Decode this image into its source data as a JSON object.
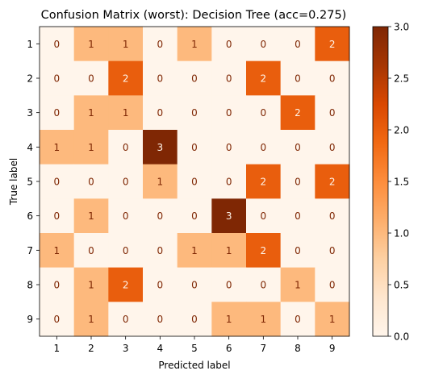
{
  "chart_data": {
    "type": "heatmap",
    "title": "Confusion Matrix (worst): Decision Tree (acc=0.275)",
    "xlabel": "Predicted label",
    "ylabel": "True label",
    "x_categories": [
      "1",
      "2",
      "3",
      "4",
      "5",
      "6",
      "7",
      "8",
      "9"
    ],
    "y_categories": [
      "1",
      "2",
      "3",
      "4",
      "5",
      "6",
      "7",
      "8",
      "9"
    ],
    "values": [
      [
        0,
        1,
        1,
        0,
        1,
        0,
        0,
        0,
        2
      ],
      [
        0,
        0,
        2,
        0,
        0,
        0,
        2,
        0,
        0
      ],
      [
        0,
        1,
        1,
        0,
        0,
        0,
        0,
        2,
        0
      ],
      [
        1,
        1,
        0,
        3,
        0,
        0,
        0,
        0,
        0
      ],
      [
        0,
        0,
        0,
        1,
        0,
        0,
        2,
        0,
        2
      ],
      [
        0,
        1,
        0,
        0,
        0,
        3,
        0,
        0,
        0
      ],
      [
        1,
        0,
        0,
        0,
        1,
        1,
        2,
        0,
        0
      ],
      [
        0,
        1,
        2,
        0,
        0,
        0,
        0,
        1,
        0
      ],
      [
        0,
        1,
        0,
        0,
        0,
        1,
        1,
        0,
        1
      ]
    ],
    "colormap": "Oranges",
    "color_range": [
      0,
      3
    ],
    "colorbar_ticks": [
      "0.0",
      "0.5",
      "1.0",
      "1.5",
      "2.0",
      "2.5",
      "3.0"
    ],
    "colors": {
      "low": "#fff5eb",
      "mid": "#fd8d3c",
      "high": "#7f2704",
      "text_on_light": "#7f2704",
      "text_on_dark": "#fff5eb"
    },
    "grid": false
  }
}
